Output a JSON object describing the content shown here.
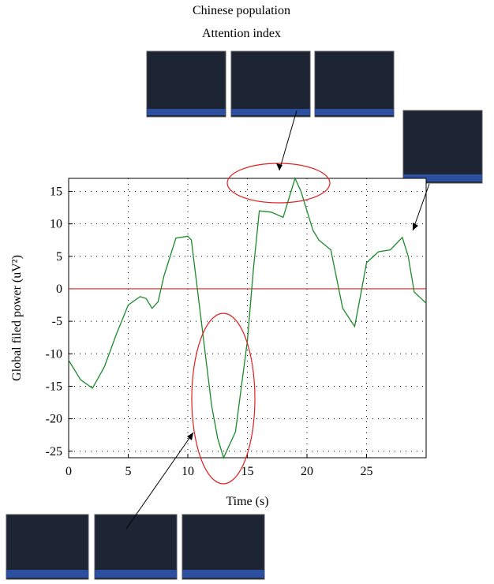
{
  "chart_data": {
    "type": "line",
    "annotation_lines": [
      "Chinese population",
      "Attention index"
    ],
    "x_label": "Time (s)",
    "y_label": "Global filed power (uV²)",
    "x": [
      0,
      1,
      2,
      3,
      4,
      5,
      6,
      6.5,
      7,
      7.5,
      8,
      9,
      10,
      10.3,
      11,
      12,
      12.5,
      13,
      14,
      15,
      15.5,
      16,
      17,
      18,
      19,
      19.5,
      20,
      20.5,
      21,
      22,
      23,
      24,
      24.5,
      25,
      26,
      27,
      28,
      28.5,
      29,
      30
    ],
    "series": [
      {
        "color": "#1a8a2a",
        "values": [
          -11,
          -14,
          -15.3,
          -12,
          -7,
          -2.5,
          -1.2,
          -1.5,
          -3,
          -2,
          2,
          7.8,
          8.1,
          7.5,
          -3,
          -18,
          -23,
          -26,
          -22,
          -8,
          3,
          12,
          11.8,
          11,
          17,
          15,
          12,
          9,
          7.5,
          6,
          -3,
          -5.8,
          -1,
          4,
          5.7,
          6,
          7.9,
          5,
          -0.5,
          -2.2
        ]
      }
    ],
    "reference_line": {
      "value": 0,
      "color": "#e02020"
    },
    "xlim": [
      0,
      30
    ],
    "xticks": [
      0,
      5,
      10,
      15,
      20,
      25
    ],
    "ylim": [
      -26,
      17
    ],
    "yticks": [
      -25,
      -20,
      -15,
      -10,
      -5,
      0,
      5,
      10,
      15
    ],
    "grid": true
  }
}
